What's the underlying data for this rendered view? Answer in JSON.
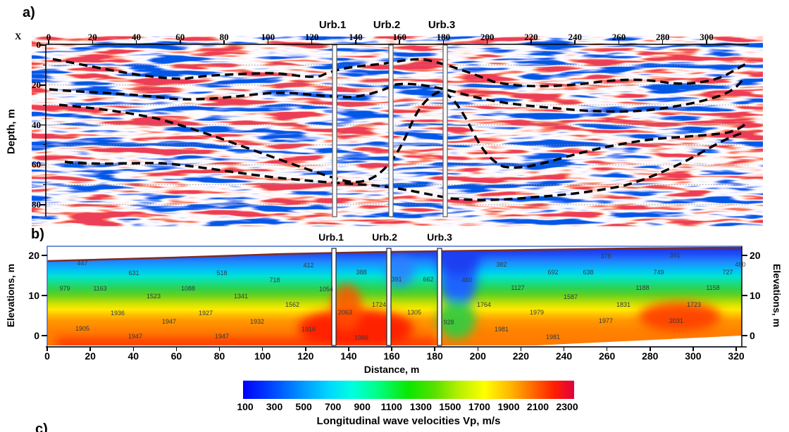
{
  "chart_data": {
    "type": "heatmap",
    "panels": [
      {
        "id": "a",
        "label": "a)",
        "kind": "seismic-reflection-section",
        "xlabel": "X",
        "ylabel": "Depth, m",
        "x_ticks": [
          0,
          20,
          40,
          60,
          80,
          100,
          120,
          140,
          160,
          180,
          200,
          220,
          240,
          260,
          280,
          300
        ],
        "y_ticks": [
          0,
          20,
          40,
          60,
          80
        ],
        "x_range_m": [
          0,
          319
        ],
        "y_range_m": [
          0,
          86
        ],
        "grid": "dotted horizontal every 10 m",
        "colormap": "red-white-blue seismic amplitude",
        "overlays": "black dashed interpreted horizons",
        "boreholes": [
          {
            "name": "Urb.1",
            "x_m": 131
          },
          {
            "name": "Urb.2",
            "x_m": 156
          },
          {
            "name": "Urb.3",
            "x_m": 181
          }
        ]
      },
      {
        "id": "b",
        "label": "b)",
        "kind": "vp-velocity-tomogram",
        "xlabel": "Distance, m",
        "ylabel_left": "Elevations, m",
        "ylabel_right": "Elevations, m",
        "x_ticks": [
          0,
          20,
          40,
          60,
          80,
          100,
          120,
          140,
          160,
          180,
          200,
          220,
          240,
          260,
          280,
          300,
          320
        ],
        "y_ticks": [
          20,
          10,
          0
        ],
        "x_range_m": [
          0,
          323
        ],
        "y_range_m": [
          -3,
          22
        ],
        "colormap": "rainbow Vp 100-2300 m/s",
        "boreholes": [
          {
            "name": "Urb.1",
            "x_m": 131
          },
          {
            "name": "Urb.2",
            "x_m": 156
          },
          {
            "name": "Urb.3",
            "x_m": 181
          }
        ],
        "velocity_samples_mps": [
          [
            447,
            117,
            374
          ],
          [
            631,
            190,
            388
          ],
          [
            518,
            315,
            388
          ],
          [
            412,
            438,
            377
          ],
          [
            718,
            390,
            398
          ],
          [
            979,
            92,
            410
          ],
          [
            1163,
            142,
            410
          ],
          [
            1088,
            267,
            410
          ],
          [
            1523,
            218,
            421
          ],
          [
            1341,
            342,
            421
          ],
          [
            1562,
            415,
            433
          ],
          [
            1054,
            463,
            411
          ],
          [
            1936,
            167,
            445
          ],
          [
            1927,
            292,
            445
          ],
          [
            1947,
            240,
            457
          ],
          [
            1932,
            365,
            457
          ],
          [
            1905,
            117,
            467
          ],
          [
            1947,
            192,
            478
          ],
          [
            1947,
            315,
            478
          ],
          [
            1916,
            438,
            468
          ],
          [
            388,
            513,
            387
          ],
          [
            1724,
            538,
            433
          ],
          [
            2063,
            490,
            444
          ],
          [
            1986,
            513,
            480
          ],
          [
            391,
            563,
            397
          ],
          [
            662,
            608,
            397
          ],
          [
            1305,
            588,
            444
          ],
          [
            928,
            637,
            458
          ],
          [
            460,
            663,
            398
          ],
          [
            382,
            712,
            376
          ],
          [
            378,
            860,
            364
          ],
          [
            391,
            958,
            363
          ],
          [
            480,
            1051,
            376
          ],
          [
            692,
            785,
            387
          ],
          [
            638,
            835,
            387
          ],
          [
            749,
            935,
            387
          ],
          [
            727,
            1033,
            387
          ],
          [
            1127,
            735,
            409
          ],
          [
            1188,
            912,
            409
          ],
          [
            1158,
            1012,
            409
          ],
          [
            1587,
            810,
            422
          ],
          [
            1764,
            687,
            433
          ],
          [
            1831,
            885,
            433
          ],
          [
            1723,
            985,
            433
          ],
          [
            1979,
            762,
            444
          ],
          [
            1977,
            860,
            456
          ],
          [
            2031,
            960,
            456
          ],
          [
            1981,
            712,
            468
          ],
          [
            1981,
            785,
            479
          ]
        ]
      }
    ],
    "colorbar": {
      "min": 100,
      "max": 2300,
      "ticks": [
        100,
        300,
        500,
        700,
        900,
        1100,
        1300,
        1500,
        1700,
        1900,
        2100,
        2300
      ],
      "label": "Longitudinal wave velocities Vp, m/s"
    }
  },
  "labels": {
    "panel_c": "c)"
  }
}
